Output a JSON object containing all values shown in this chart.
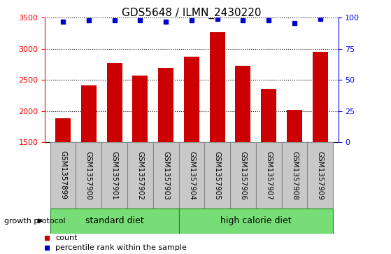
{
  "title": "GDS5648 / ILMN_2430220",
  "samples": [
    "GSM1357899",
    "GSM1357900",
    "GSM1357901",
    "GSM1357902",
    "GSM1357903",
    "GSM1357904",
    "GSM1357905",
    "GSM1357906",
    "GSM1357907",
    "GSM1357908",
    "GSM1357909"
  ],
  "counts": [
    1880,
    2410,
    2770,
    2570,
    2690,
    2870,
    3270,
    2730,
    2360,
    2020,
    2950
  ],
  "percentile_ranks": [
    97,
    98,
    98,
    98,
    97,
    98,
    99,
    98,
    98,
    96,
    99
  ],
  "bar_color": "#cc0000",
  "dot_color": "#0000cc",
  "ylim_left": [
    1500,
    3500
  ],
  "ylim_right": [
    0,
    100
  ],
  "yticks_left": [
    1500,
    2000,
    2500,
    3000,
    3500
  ],
  "yticks_right": [
    0,
    25,
    50,
    75,
    100
  ],
  "standard_diet_label": "standard diet",
  "high_calorie_label": "high calorie diet",
  "group_color": "#77dd77",
  "group_border_color": "#228B22",
  "group_label_prefix": "growth protocol",
  "legend_count_label": "count",
  "legend_percentile_label": "percentile rank within the sample",
  "standard_diet_count": 5,
  "high_calorie_count": 6,
  "background_label": "#c8c8c8",
  "label_border_color": "#888888",
  "tick_label_fontsize": 7.5,
  "title_fontsize": 11
}
